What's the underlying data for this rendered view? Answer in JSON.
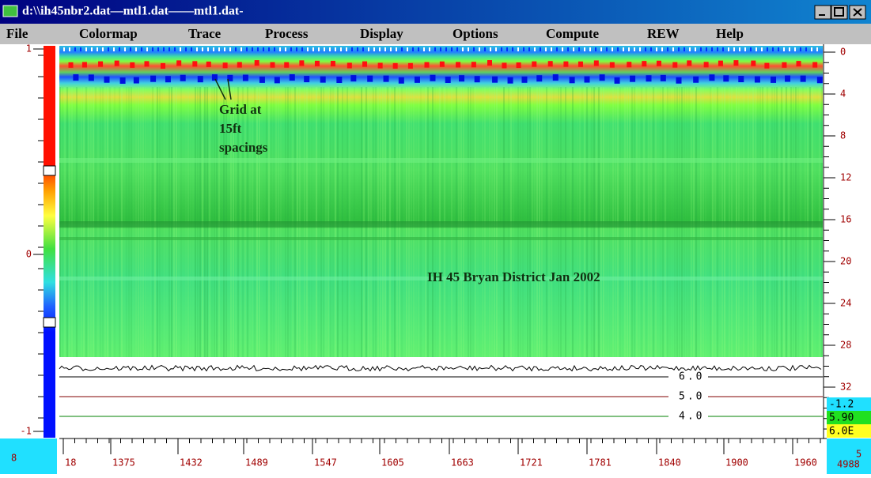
{
  "title_bar": {
    "title": "d:\\\\ih45nbr2.dat—mtl1.dat——mtl1.dat-"
  },
  "menu": [
    "File",
    "Colormap",
    "Trace",
    "Process",
    "Display",
    "Options",
    "Compute",
    "REW",
    "Help"
  ],
  "colorbar": {
    "labels": [
      "1",
      "0",
      "-1"
    ]
  },
  "annotations": {
    "grid_note": [
      "Grid at",
      "15ft",
      "spacings"
    ],
    "caption": "IH 45 Bryan District  Jan 2002"
  },
  "depth_axis": {
    "labels": [
      "0",
      "4",
      "8",
      "12",
      "16",
      "20",
      "24",
      "28",
      "32"
    ]
  },
  "status_boxes": [
    "-1.2",
    "5.90",
    "6.0E"
  ],
  "trace_panel": {
    "levels": [
      "6.0",
      "5.0",
      "4.0"
    ]
  },
  "distance_axis": {
    "labels": [
      "18",
      "1375",
      "1432",
      "1489",
      "1547",
      "1605",
      "1663",
      "1721",
      "1781",
      "1840",
      "1900",
      "1960"
    ],
    "end_top": "5",
    "end_label": "4988",
    "start_label": "8"
  }
}
